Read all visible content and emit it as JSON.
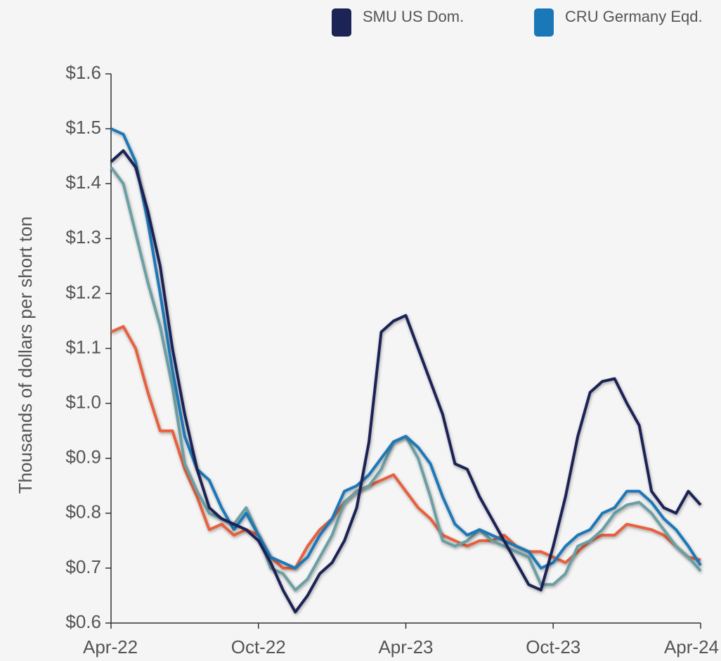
{
  "chart_data": {
    "type": "line",
    "y_label": "Thousands of dollars per short ton",
    "categories": [
      "Apr-22",
      null,
      null,
      null,
      null,
      null,
      null,
      null,
      null,
      null,
      null,
      null,
      "Oct-22",
      null,
      null,
      null,
      null,
      null,
      null,
      null,
      null,
      null,
      null,
      null,
      "Apr-23",
      null,
      null,
      null,
      null,
      null,
      null,
      null,
      null,
      null,
      null,
      null,
      "Oct-23",
      null,
      null,
      null,
      null,
      null,
      null,
      null,
      null,
      null,
      null,
      null,
      "Apr-24"
    ],
    "series": [
      {
        "name": "SMU US Dom.",
        "color": "#1b2455",
        "values": [
          1.44,
          1.46,
          1.43,
          1.35,
          1.25,
          1.1,
          0.98,
          0.88,
          0.81,
          0.79,
          0.78,
          0.77,
          0.75,
          0.71,
          0.66,
          0.62,
          0.65,
          0.69,
          0.71,
          0.75,
          0.81,
          0.93,
          1.13,
          1.15,
          1.16,
          1.1,
          1.04,
          0.98,
          0.89,
          0.88,
          0.83,
          0.79,
          0.75,
          0.71,
          0.67,
          0.66,
          0.74,
          0.83,
          0.94,
          1.02,
          1.04,
          1.045,
          1.0,
          0.96,
          0.84,
          0.81,
          0.8,
          0.84,
          0.815
        ]
      },
      {
        "name": "CRU Germany Eqd.",
        "color": "#1a78b8",
        "values": [
          1.5,
          1.49,
          1.44,
          1.33,
          1.2,
          1.06,
          0.94,
          0.88,
          0.86,
          0.81,
          0.77,
          0.8,
          0.76,
          0.72,
          0.71,
          0.7,
          0.72,
          0.76,
          0.79,
          0.84,
          0.85,
          0.87,
          0.9,
          0.93,
          0.94,
          0.92,
          0.89,
          0.83,
          0.78,
          0.76,
          0.77,
          0.76,
          0.75,
          0.74,
          0.73,
          0.7,
          0.71,
          0.74,
          0.76,
          0.77,
          0.8,
          0.81,
          0.84,
          0.84,
          0.82,
          0.79,
          0.77,
          0.74,
          0.705
        ]
      },
      {
        "color": "#6a9fa3",
        "values": [
          1.43,
          1.4,
          1.31,
          1.22,
          1.14,
          1.03,
          0.89,
          0.84,
          0.8,
          0.79,
          0.78,
          0.81,
          0.76,
          0.7,
          0.69,
          0.66,
          0.68,
          0.72,
          0.76,
          0.82,
          0.84,
          0.85,
          0.88,
          0.93,
          0.94,
          0.9,
          0.83,
          0.75,
          0.74,
          0.75,
          0.77,
          0.75,
          0.74,
          0.73,
          0.72,
          0.67,
          0.67,
          0.69,
          0.74,
          0.75,
          0.77,
          0.8,
          0.815,
          0.82,
          0.8,
          0.77,
          0.74,
          0.72,
          0.695
        ]
      },
      {
        "color": "#e8603c",
        "values": [
          1.13,
          1.14,
          1.1,
          1.02,
          0.95,
          0.95,
          0.88,
          0.83,
          0.77,
          0.78,
          0.76,
          0.77,
          0.76,
          0.72,
          0.7,
          0.7,
          0.74,
          0.77,
          0.79,
          0.82,
          0.84,
          0.85,
          0.86,
          0.87,
          0.84,
          0.81,
          0.79,
          0.76,
          0.75,
          0.74,
          0.75,
          0.75,
          0.76,
          0.74,
          0.73,
          0.73,
          0.72,
          0.71,
          0.73,
          0.75,
          0.76,
          0.76,
          0.78,
          0.775,
          0.77,
          0.76,
          0.74,
          0.72,
          0.715
        ]
      }
    ],
    "ylim": [
      0.6,
      1.6
    ],
    "yticks": [
      {
        "value": 0.6,
        "label": "$0.6"
      },
      {
        "value": 0.7,
        "label": "$0.7"
      },
      {
        "value": 0.8,
        "label": "$0.8"
      },
      {
        "value": 0.9,
        "label": "$0.9"
      },
      {
        "value": 1.0,
        "label": "$1.0"
      },
      {
        "value": 1.1,
        "label": "$1.1"
      },
      {
        "value": 1.2,
        "label": "$1.2"
      },
      {
        "value": 1.3,
        "label": "$1.3"
      },
      {
        "value": 1.4,
        "label": "$1.4"
      },
      {
        "value": 1.5,
        "label": "$1.5"
      },
      {
        "value": 1.6,
        "label": "$1.6"
      }
    ],
    "grid": false
  }
}
